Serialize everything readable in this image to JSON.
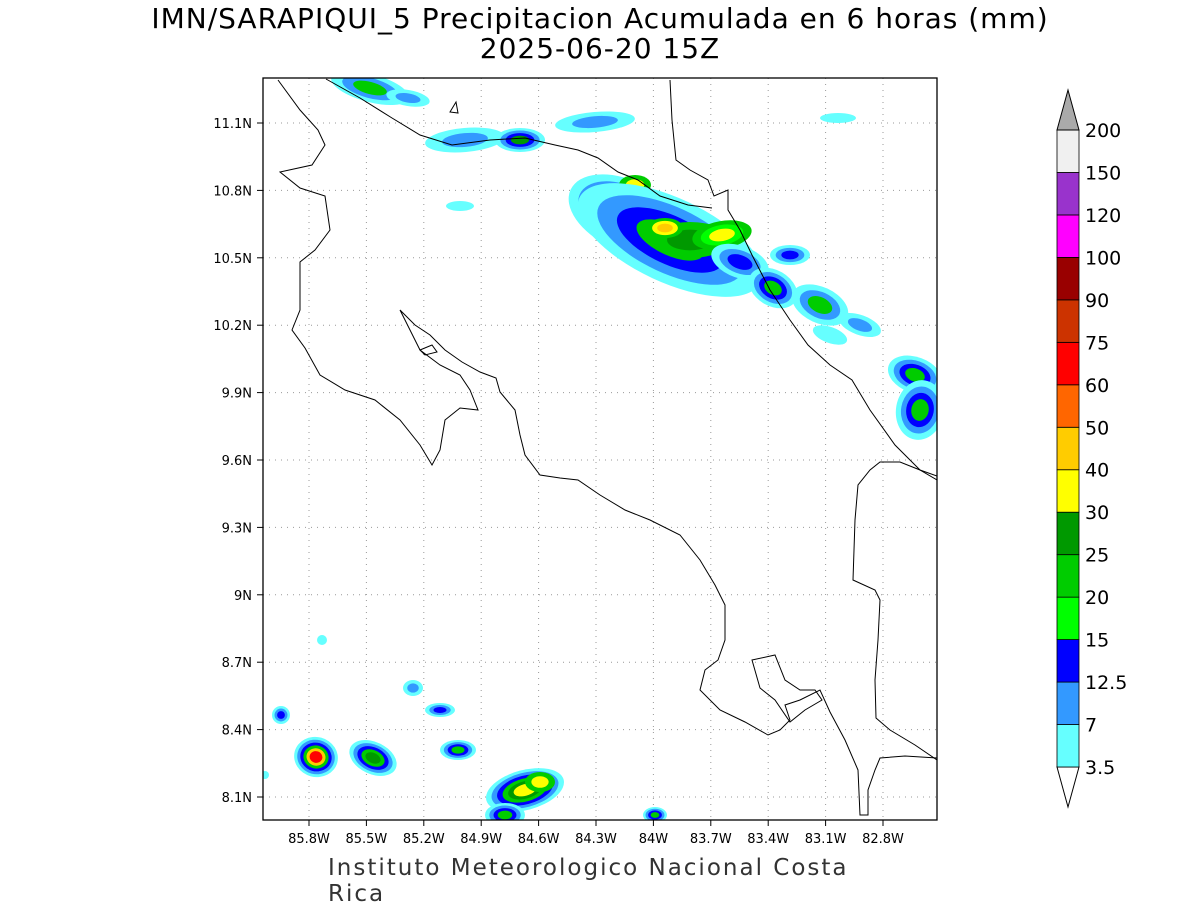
{
  "title": {
    "line1": "IMN/SARAPIQUI_5 Precipitacion Acumulada en 6 horas (mm)",
    "line2": "2025-06-20 15Z"
  },
  "footer": "Instituto Meteorologico Nacional Costa Rica",
  "axes": {
    "lon_labels": [
      "85.8W",
      "85.5W",
      "85.2W",
      "84.9W",
      "84.6W",
      "84.3W",
      "84W",
      "83.7W",
      "83.4W",
      "83.1W",
      "82.8W"
    ],
    "lat_labels": [
      "11.1N",
      "10.8N",
      "10.5N",
      "10.2N",
      "9.9N",
      "9.6N",
      "9.3N",
      "9N",
      "8.7N",
      "8.4N",
      "8.1N"
    ]
  },
  "colorbar": {
    "levels": [
      "3.5",
      "7",
      "12.5",
      "15",
      "20",
      "25",
      "30",
      "40",
      "50",
      "60",
      "75",
      "90",
      "100",
      "120",
      "150",
      "200"
    ],
    "colors": [
      "#ffffff",
      "#66ffff",
      "#3399ff",
      "#0000ff",
      "#00ff00",
      "#00cc00",
      "#009900",
      "#ffff00",
      "#ffcc00",
      "#ff6600",
      "#ff0000",
      "#cc3300",
      "#990000",
      "#ff00ff",
      "#9933cc",
      "#f0f0f0",
      "#aaaaaa"
    ]
  }
}
